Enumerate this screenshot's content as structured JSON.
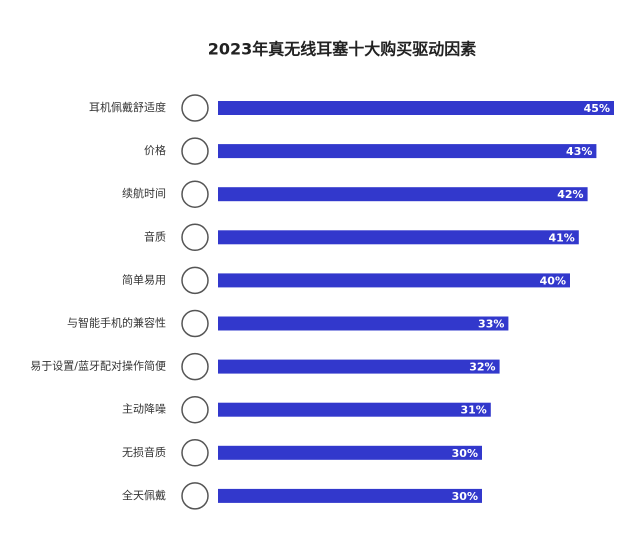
{
  "chart_data": {
    "type": "bar",
    "orientation": "horizontal",
    "title": "2023年真无线耳塞十大购买驱动因素",
    "categories": [
      "耳机佩戴舒适度",
      "价格",
      "续航时间",
      "音质",
      "简单易用",
      "与智能手机的兼容性",
      "易于设置/蓝牙配对操作简便",
      "主动降噪",
      "无损音质",
      "全天佩戴"
    ],
    "values": [
      45,
      43,
      42,
      41,
      40,
      33,
      32,
      31,
      30,
      30
    ],
    "value_labels": [
      "45%",
      "43%",
      "42%",
      "41%",
      "40%",
      "33%",
      "32%",
      "31%",
      "30%",
      "30%"
    ],
    "color": "#3238cc"
  }
}
